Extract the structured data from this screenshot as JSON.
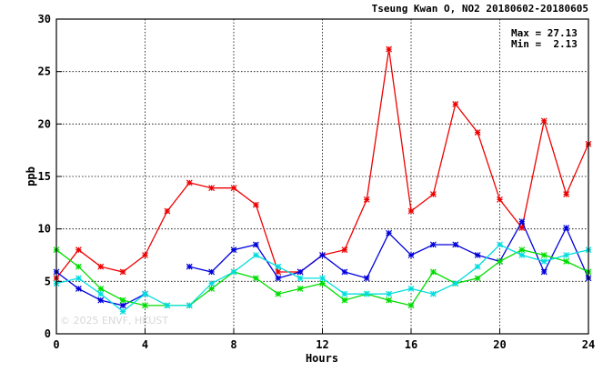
{
  "chart_data": {
    "type": "line",
    "title": "Tseung Kwan O, NO2 20180602-20180605",
    "xlabel": "Hours",
    "ylabel": "ppb",
    "xlim": [
      0,
      24
    ],
    "ylim": [
      0,
      30
    ],
    "xticks": [
      "0",
      "4",
      "8",
      "12",
      "16",
      "20",
      "24"
    ],
    "yticks": [
      "0",
      "5",
      "10",
      "15",
      "20",
      "25",
      "30"
    ],
    "grid": true,
    "stats": {
      "max": "Max = 27.13",
      "min": "Min =  2.13"
    },
    "watermark": "© 2025  ENVF, HKUST",
    "x": [
      0,
      1,
      2,
      3,
      4,
      5,
      6,
      7,
      8,
      9,
      10,
      11,
      12,
      13,
      14,
      15,
      16,
      17,
      18,
      19,
      20,
      21,
      22,
      23,
      24
    ],
    "series": [
      {
        "color": "#ee0000",
        "values": [
          5.3,
          8.0,
          6.4,
          5.9,
          7.5,
          11.7,
          14.4,
          13.9,
          13.9,
          12.3,
          5.9,
          5.9,
          7.5,
          8.0,
          12.8,
          27.13,
          11.7,
          13.3,
          21.9,
          19.2,
          12.8,
          10.1,
          20.3,
          13.3,
          18.1
        ]
      },
      {
        "color": "#0000dd",
        "values": [
          5.9,
          4.3,
          3.2,
          2.7,
          3.8,
          null,
          6.4,
          5.9,
          8.0,
          8.5,
          5.3,
          5.9,
          7.5,
          5.9,
          5.3,
          9.6,
          7.5,
          8.5,
          8.5,
          7.5,
          6.9,
          10.7,
          5.9,
          10.1,
          5.3
        ]
      },
      {
        "color": "#00dd00",
        "values": [
          8.0,
          6.4,
          4.3,
          3.2,
          2.7,
          2.7,
          2.7,
          4.3,
          5.9,
          5.3,
          3.8,
          4.3,
          4.8,
          3.2,
          3.8,
          3.2,
          2.7,
          5.9,
          4.8,
          5.3,
          6.9,
          8.0,
          7.5,
          6.9,
          5.9
        ]
      },
      {
        "color": "#00dddd",
        "values": [
          4.8,
          5.3,
          3.8,
          2.13,
          3.8,
          2.7,
          2.7,
          4.8,
          5.9,
          7.5,
          6.4,
          5.3,
          5.3,
          3.8,
          3.8,
          3.8,
          4.3,
          3.8,
          4.8,
          6.4,
          8.5,
          7.5,
          6.9,
          7.5,
          8.0
        ]
      }
    ]
  }
}
